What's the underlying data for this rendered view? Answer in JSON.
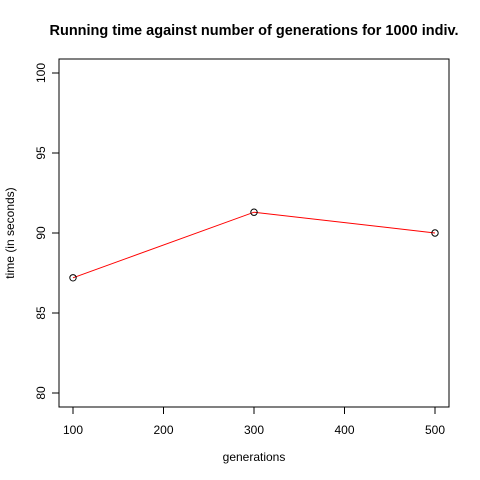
{
  "chart_data": {
    "type": "line",
    "title": "Running time against number of generations for 1000 indiv.",
    "xlabel": "generations",
    "ylabel": "time (in seconds)",
    "xlim": [
      100,
      500
    ],
    "ylim": [
      80,
      100
    ],
    "x_ticks": [
      100,
      200,
      300,
      400,
      500
    ],
    "y_ticks": [
      80,
      85,
      90,
      95,
      100
    ],
    "grid": false,
    "series": [
      {
        "x": [
          100,
          300,
          500
        ],
        "values": [
          87.2,
          91.3,
          90.0
        ],
        "line_color": "#ff0000",
        "marker": "open-circle",
        "marker_color": "#000000"
      }
    ]
  }
}
